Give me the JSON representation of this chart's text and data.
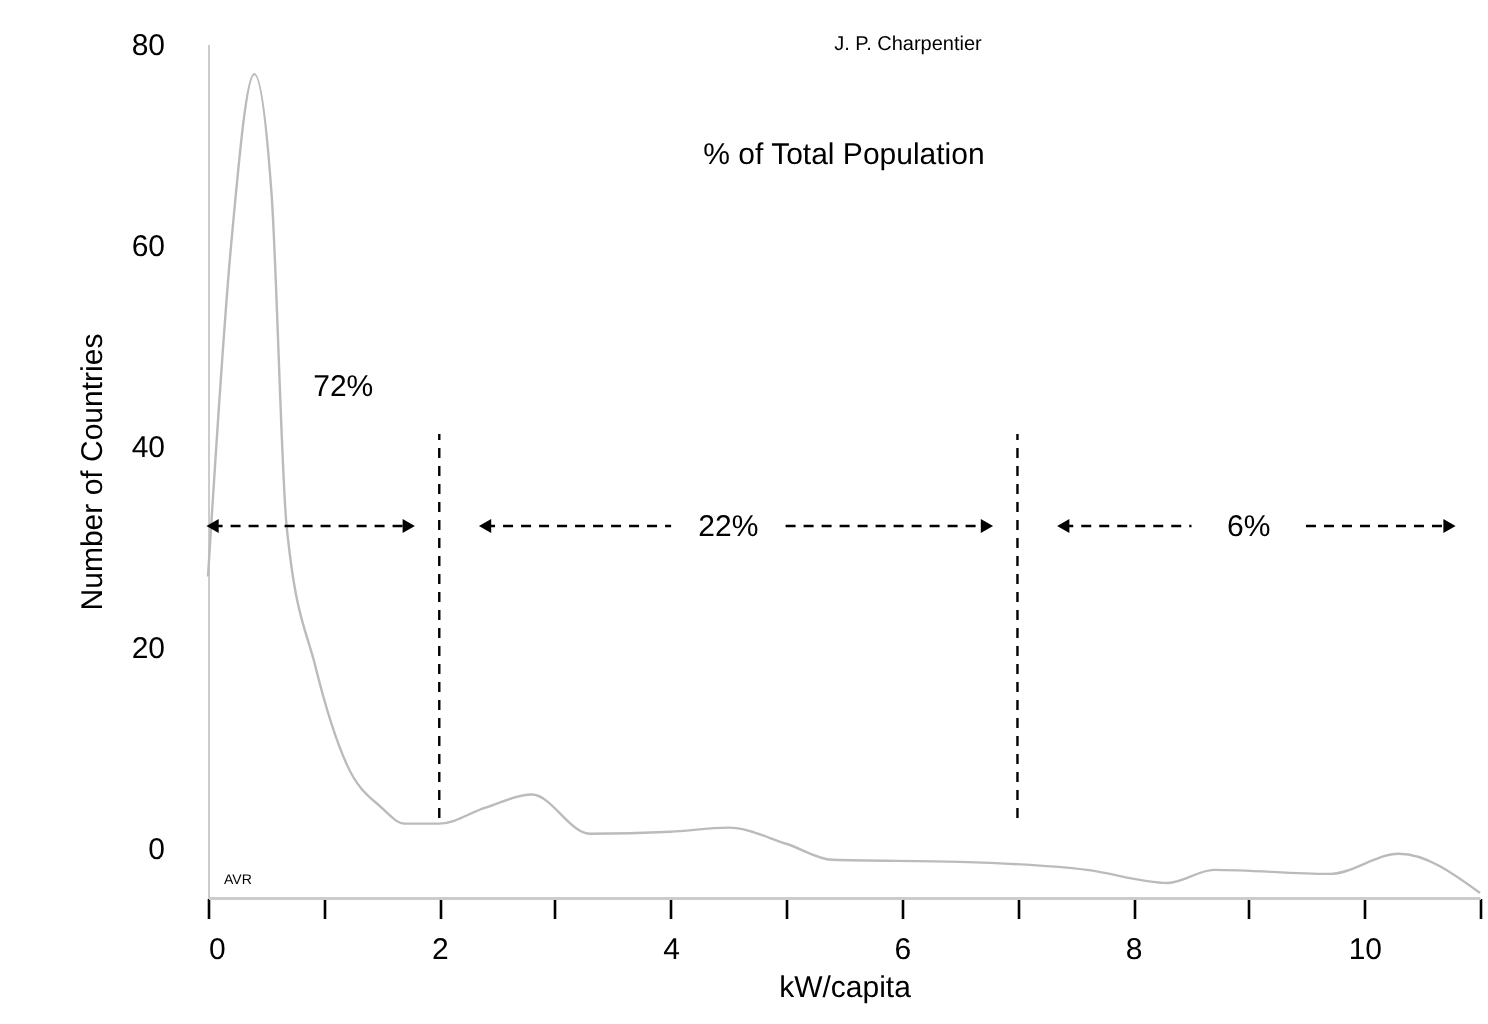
{
  "chart_data": {
    "type": "line",
    "title": "% of Total Population",
    "xlabel": "kW/capita",
    "ylabel": "Number of Countries",
    "x": [
      0,
      0.2,
      0.4,
      0.55,
      0.68,
      0.93,
      1.2,
      1.5,
      1.7,
      2,
      2.4,
      2.8,
      3.3,
      4,
      4.5,
      5,
      5.4,
      6.5,
      7.6,
      8.3,
      8.7,
      9.7,
      10.3,
      11
    ],
    "series": [
      {
        "color": "#bbbbbb",
        "values": [
          27,
          60,
          77,
          65,
          32,
          18,
          8.3,
          4,
          2.4,
          2.4,
          4,
          5.3,
          1.4,
          1.6,
          2,
          0.4,
          -1.2,
          -1.4,
          -2.2,
          -3.5,
          -2.2,
          -2.6,
          -0.6,
          -4.5
        ]
      }
    ],
    "xlim": [
      0,
      11
    ],
    "ylim": [
      -5,
      80
    ],
    "xticks": [
      0,
      {
        "value": 1,
        "label": null
      },
      2,
      {
        "value": 3,
        "label": null
      },
      4,
      {
        "value": 5,
        "label": null
      },
      6,
      {
        "value": 7,
        "label": null
      },
      8,
      {
        "value": 9,
        "label": null
      },
      10,
      {
        "value": 11,
        "label": null
      }
    ],
    "yticks": [
      0,
      20,
      40,
      60,
      80
    ],
    "ref_lines": [
      {
        "axis": "x",
        "value": 2,
        "color": "#000000",
        "line_style": "dashed"
      },
      {
        "axis": "x",
        "value": 7,
        "color": "#000000",
        "line_style": "dashed"
      }
    ],
    "annotations": [
      "72%",
      "22%",
      "6%",
      "J. P. Charpentier",
      "AVR"
    ],
    "grid": false,
    "marker": "none",
    "line_style": "solid"
  }
}
